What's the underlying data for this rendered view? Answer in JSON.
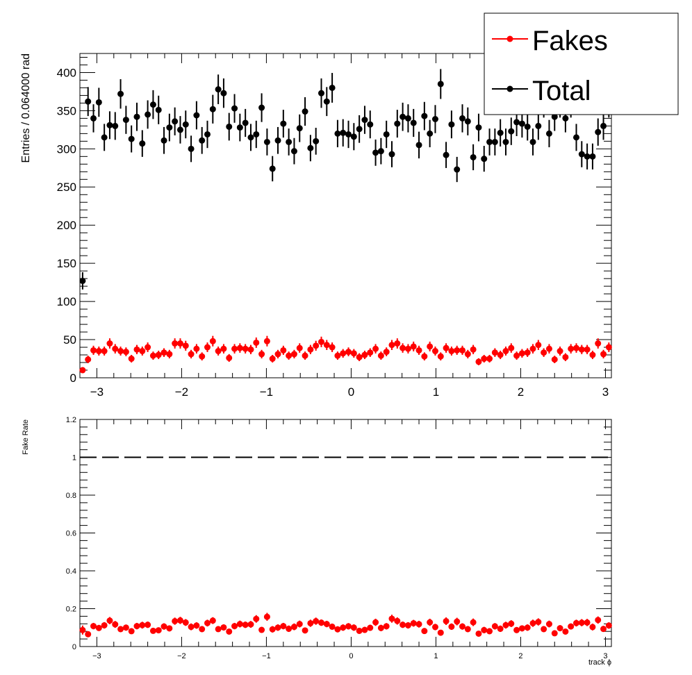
{
  "chart_data": [
    {
      "type": "scatter",
      "panel": "top",
      "title": "",
      "xlabel": "",
      "ylabel": "Entries / 0.064000 rad",
      "xlim": [
        -3.2,
        3.07
      ],
      "ylim": [
        0,
        425
      ],
      "x_ticks": [
        -3,
        -2,
        -1,
        0,
        1,
        2,
        3
      ],
      "x_tick_labels": [
        "−3",
        "−2",
        "−1",
        "0",
        "1",
        "2",
        "3"
      ],
      "y_ticks": [
        0,
        50,
        100,
        150,
        200,
        250,
        300,
        350,
        400
      ],
      "y_tick_labels": [
        "0",
        "50",
        "100",
        "150",
        "200",
        "250",
        "300",
        "350",
        "400"
      ],
      "grid": false,
      "legend_position": "top-right",
      "x": [
        -3.168,
        -3.104,
        -3.04,
        -2.976,
        -2.912,
        -2.848,
        -2.784,
        -2.72,
        -2.656,
        -2.592,
        -2.528,
        -2.464,
        -2.4,
        -2.336,
        -2.272,
        -2.208,
        -2.144,
        -2.08,
        -2.016,
        -1.952,
        -1.888,
        -1.824,
        -1.76,
        -1.696,
        -1.632,
        -1.568,
        -1.504,
        -1.44,
        -1.376,
        -1.312,
        -1.248,
        -1.184,
        -1.12,
        -1.056,
        -0.992,
        -0.928,
        -0.864,
        -0.8,
        -0.736,
        -0.672,
        -0.608,
        -0.544,
        -0.48,
        -0.416,
        -0.352,
        -0.288,
        -0.224,
        -0.16,
        -0.096,
        -0.032,
        0.032,
        0.096,
        0.16,
        0.224,
        0.288,
        0.352,
        0.416,
        0.48,
        0.544,
        0.608,
        0.672,
        0.736,
        0.8,
        0.864,
        0.928,
        0.992,
        1.056,
        1.12,
        1.184,
        1.248,
        1.312,
        1.376,
        1.44,
        1.504,
        1.568,
        1.632,
        1.696,
        1.76,
        1.824,
        1.888,
        1.952,
        2.016,
        2.08,
        2.144,
        2.208,
        2.272,
        2.336,
        2.4,
        2.464,
        2.528,
        2.592,
        2.656,
        2.72,
        2.784,
        2.848,
        2.912,
        2.976,
        3.04
      ],
      "x_err": [
        0.032,
        0.032,
        0.032,
        0.032,
        0.032,
        0.032,
        0.032,
        0.032,
        0.032,
        0.032,
        0.032,
        0.032,
        0.032,
        0.032,
        0.032,
        0.032,
        0.032,
        0.032,
        0.032,
        0.032,
        0.032,
        0.032,
        0.032,
        0.032,
        0.032,
        0.032,
        0.032,
        0.032,
        0.032,
        0.032,
        0.032,
        0.032,
        0.032,
        0.032,
        0.032,
        0.032,
        0.032,
        0.032,
        0.032,
        0.032,
        0.032,
        0.032,
        0.032,
        0.032,
        0.032,
        0.032,
        0.032,
        0.032,
        0.032,
        0.032,
        0.032,
        0.032,
        0.032,
        0.032,
        0.032,
        0.032,
        0.032,
        0.032,
        0.032,
        0.032,
        0.032,
        0.032,
        0.032,
        0.032,
        0.032,
        0.032,
        0.032,
        0.032,
        0.032,
        0.032,
        0.032,
        0.032,
        0.032,
        0.032,
        0.032,
        0.032,
        0.032,
        0.032,
        0.032,
        0.032,
        0.032,
        0.032,
        0.032,
        0.032,
        0.032,
        0.032,
        0.032,
        0.032,
        0.032,
        0.032,
        0.032,
        0.032,
        0.032,
        0.032,
        0.032,
        0.032,
        0.032,
        0.032
      ],
      "series": [
        {
          "name": "Fakes",
          "color": "#ff0000",
          "values": [
            10,
            24,
            36,
            35,
            35,
            45,
            38,
            35,
            34,
            25,
            37,
            35,
            40,
            29,
            30,
            33,
            31,
            45,
            45,
            42,
            31,
            38,
            28,
            40,
            48,
            35,
            38,
            26,
            38,
            39,
            38,
            37,
            46,
            31,
            48,
            25,
            31,
            36,
            29,
            31,
            39,
            29,
            37,
            42,
            47,
            43,
            40,
            29,
            32,
            34,
            32,
            27,
            30,
            33,
            38,
            29,
            34,
            43,
            45,
            39,
            38,
            41,
            36,
            28,
            41,
            35,
            28,
            39,
            35,
            36,
            36,
            31,
            37,
            21,
            25,
            25,
            33,
            30,
            35,
            39,
            29,
            32,
            33,
            38,
            43,
            33,
            38,
            24,
            35,
            27,
            38,
            39,
            37,
            37,
            30,
            45,
            31,
            40
          ],
          "errors": [
            3.2,
            4.9,
            6.0,
            5.9,
            5.9,
            6.7,
            6.2,
            5.9,
            5.8,
            5.0,
            6.1,
            5.9,
            6.3,
            5.4,
            5.5,
            5.7,
            5.6,
            6.7,
            6.7,
            6.5,
            5.6,
            6.2,
            5.3,
            6.3,
            6.9,
            5.9,
            6.2,
            5.1,
            6.2,
            6.2,
            6.2,
            6.1,
            6.8,
            5.6,
            6.9,
            5.0,
            5.6,
            6.0,
            5.4,
            5.6,
            6.2,
            5.4,
            6.1,
            6.5,
            6.9,
            6.6,
            6.3,
            5.4,
            5.7,
            5.8,
            5.7,
            5.2,
            5.5,
            5.7,
            6.2,
            5.4,
            5.8,
            6.6,
            6.7,
            6.2,
            6.2,
            6.4,
            6.0,
            5.3,
            6.4,
            5.9,
            5.3,
            6.2,
            5.9,
            6.0,
            6.0,
            5.6,
            6.1,
            4.6,
            5.0,
            5.0,
            5.7,
            5.5,
            5.9,
            6.2,
            5.4,
            5.7,
            5.7,
            6.2,
            6.6,
            5.7,
            6.2,
            4.9,
            5.9,
            5.2,
            6.2,
            6.2,
            6.1,
            6.1,
            5.5,
            6.7,
            5.6,
            6.3
          ]
        },
        {
          "name": "Total",
          "color": "#000000",
          "values": [
            127,
            362,
            340,
            361,
            315,
            331,
            330,
            372,
            338,
            313,
            342,
            307,
            345,
            358,
            351,
            311,
            328,
            336,
            325,
            332,
            300,
            344,
            311,
            319,
            352,
            378,
            373,
            329,
            353,
            328,
            334,
            315,
            319,
            354,
            309,
            274,
            311,
            333,
            309,
            297,
            327,
            349,
            301,
            310,
            373,
            362,
            380,
            320,
            321,
            319,
            316,
            326,
            338,
            332,
            295,
            297,
            319,
            293,
            333,
            342,
            340,
            334,
            305,
            343,
            320,
            339,
            385,
            292,
            332,
            273,
            340,
            336,
            289,
            328,
            287,
            309,
            309,
            321,
            309,
            323,
            335,
            333,
            329,
            309,
            330,
            360,
            320,
            342,
            360,
            340,
            360,
            315,
            293,
            290,
            290,
            322,
            330,
            360
          ],
          "errors": [
            11.3,
            19.0,
            18.4,
            19.0,
            17.7,
            18.2,
            18.2,
            19.3,
            18.4,
            17.7,
            18.5,
            17.5,
            18.6,
            18.9,
            18.7,
            17.6,
            18.1,
            18.3,
            18.0,
            18.2,
            17.3,
            18.5,
            17.6,
            17.9,
            18.8,
            19.4,
            19.3,
            18.1,
            18.8,
            18.1,
            18.3,
            17.7,
            17.9,
            18.8,
            17.6,
            16.6,
            17.6,
            18.2,
            17.6,
            17.2,
            18.1,
            18.7,
            17.3,
            17.6,
            19.3,
            19.0,
            19.5,
            17.9,
            17.9,
            17.9,
            17.8,
            18.1,
            18.4,
            18.2,
            17.2,
            17.2,
            17.9,
            17.1,
            18.2,
            18.5,
            18.4,
            18.3,
            17.5,
            18.5,
            17.9,
            18.4,
            19.6,
            17.1,
            18.2,
            16.5,
            18.4,
            18.3,
            17.0,
            18.1,
            16.9,
            17.6,
            17.6,
            17.9,
            17.6,
            18.0,
            18.3,
            18.2,
            18.1,
            17.6,
            18.2,
            19.0,
            17.9,
            18.5,
            19.0,
            18.4,
            19.0,
            17.7,
            17.1,
            17.0,
            17.0,
            17.9,
            18.2,
            19.0
          ]
        }
      ],
      "legend": [
        "Fakes",
        "Total"
      ]
    },
    {
      "type": "scatter",
      "panel": "bottom",
      "title": "",
      "xlabel": "track ϕ",
      "ylabel": "Fake Rate",
      "xlim": [
        -3.2,
        3.07
      ],
      "ylim": [
        0,
        1.2
      ],
      "x_ticks": [
        -3,
        -2,
        -1,
        0,
        1,
        2,
        3
      ],
      "x_tick_labels": [
        "−3",
        "−2",
        "−1",
        "0",
        "1",
        "2",
        "3"
      ],
      "y_ticks": [
        0,
        0.2,
        0.4,
        0.6,
        0.8,
        1,
        1.2
      ],
      "y_tick_labels": [
        "0",
        "0.2",
        "0.4",
        "0.6",
        "0.8",
        "1",
        "1.2"
      ],
      "grid": false,
      "reference_line": {
        "y": 1,
        "style": "dashed",
        "color": "#000000"
      },
      "series": [
        {
          "name": "",
          "color": "#ff0000",
          "values": [
            0.087,
            0.065,
            0.108,
            0.098,
            0.112,
            0.137,
            0.117,
            0.092,
            0.1,
            0.081,
            0.108,
            0.113,
            0.115,
            0.083,
            0.086,
            0.106,
            0.096,
            0.134,
            0.138,
            0.127,
            0.104,
            0.111,
            0.092,
            0.124,
            0.137,
            0.092,
            0.101,
            0.079,
            0.108,
            0.119,
            0.115,
            0.117,
            0.146,
            0.088,
            0.157,
            0.091,
            0.1,
            0.108,
            0.094,
            0.104,
            0.119,
            0.085,
            0.123,
            0.134,
            0.126,
            0.119,
            0.105,
            0.091,
            0.1,
            0.107,
            0.1,
            0.083,
            0.088,
            0.099,
            0.128,
            0.098,
            0.107,
            0.147,
            0.135,
            0.115,
            0.112,
            0.123,
            0.118,
            0.082,
            0.128,
            0.103,
            0.073,
            0.134,
            0.105,
            0.132,
            0.106,
            0.092,
            0.128,
            0.068,
            0.087,
            0.081,
            0.107,
            0.094,
            0.113,
            0.121,
            0.087,
            0.096,
            0.1,
            0.123,
            0.13,
            0.092,
            0.119,
            0.07,
            0.097,
            0.079,
            0.106,
            0.124,
            0.126,
            0.127,
            0.103,
            0.14,
            0.093,
            0.111
          ],
          "errors": [
            0.024,
            0.013,
            0.017,
            0.016,
            0.017,
            0.019,
            0.018,
            0.016,
            0.016,
            0.015,
            0.017,
            0.018,
            0.017,
            0.015,
            0.015,
            0.017,
            0.016,
            0.019,
            0.019,
            0.018,
            0.018,
            0.017,
            0.016,
            0.018,
            0.018,
            0.015,
            0.016,
            0.015,
            0.017,
            0.018,
            0.017,
            0.018,
            0.02,
            0.015,
            0.021,
            0.017,
            0.017,
            0.017,
            0.017,
            0.018,
            0.018,
            0.015,
            0.019,
            0.019,
            0.017,
            0.017,
            0.016,
            0.016,
            0.017,
            0.017,
            0.017,
            0.016,
            0.016,
            0.016,
            0.019,
            0.017,
            0.017,
            0.021,
            0.019,
            0.017,
            0.017,
            0.018,
            0.018,
            0.015,
            0.019,
            0.017,
            0.013,
            0.02,
            0.017,
            0.02,
            0.017,
            0.016,
            0.02,
            0.014,
            0.017,
            0.016,
            0.017,
            0.017,
            0.018,
            0.018,
            0.016,
            0.016,
            0.017,
            0.019,
            0.019,
            0.016,
            0.018,
            0.014,
            0.016,
            0.015,
            0.016,
            0.018,
            0.019,
            0.019,
            0.018,
            0.019,
            0.016,
            0.017
          ]
        }
      ]
    }
  ],
  "colors": {
    "fakes": "#ff0000",
    "total": "#000000"
  },
  "legend": {
    "items": [
      {
        "name": "Fakes",
        "color": "#ff0000"
      },
      {
        "name": "Total",
        "color": "#000000"
      }
    ]
  }
}
